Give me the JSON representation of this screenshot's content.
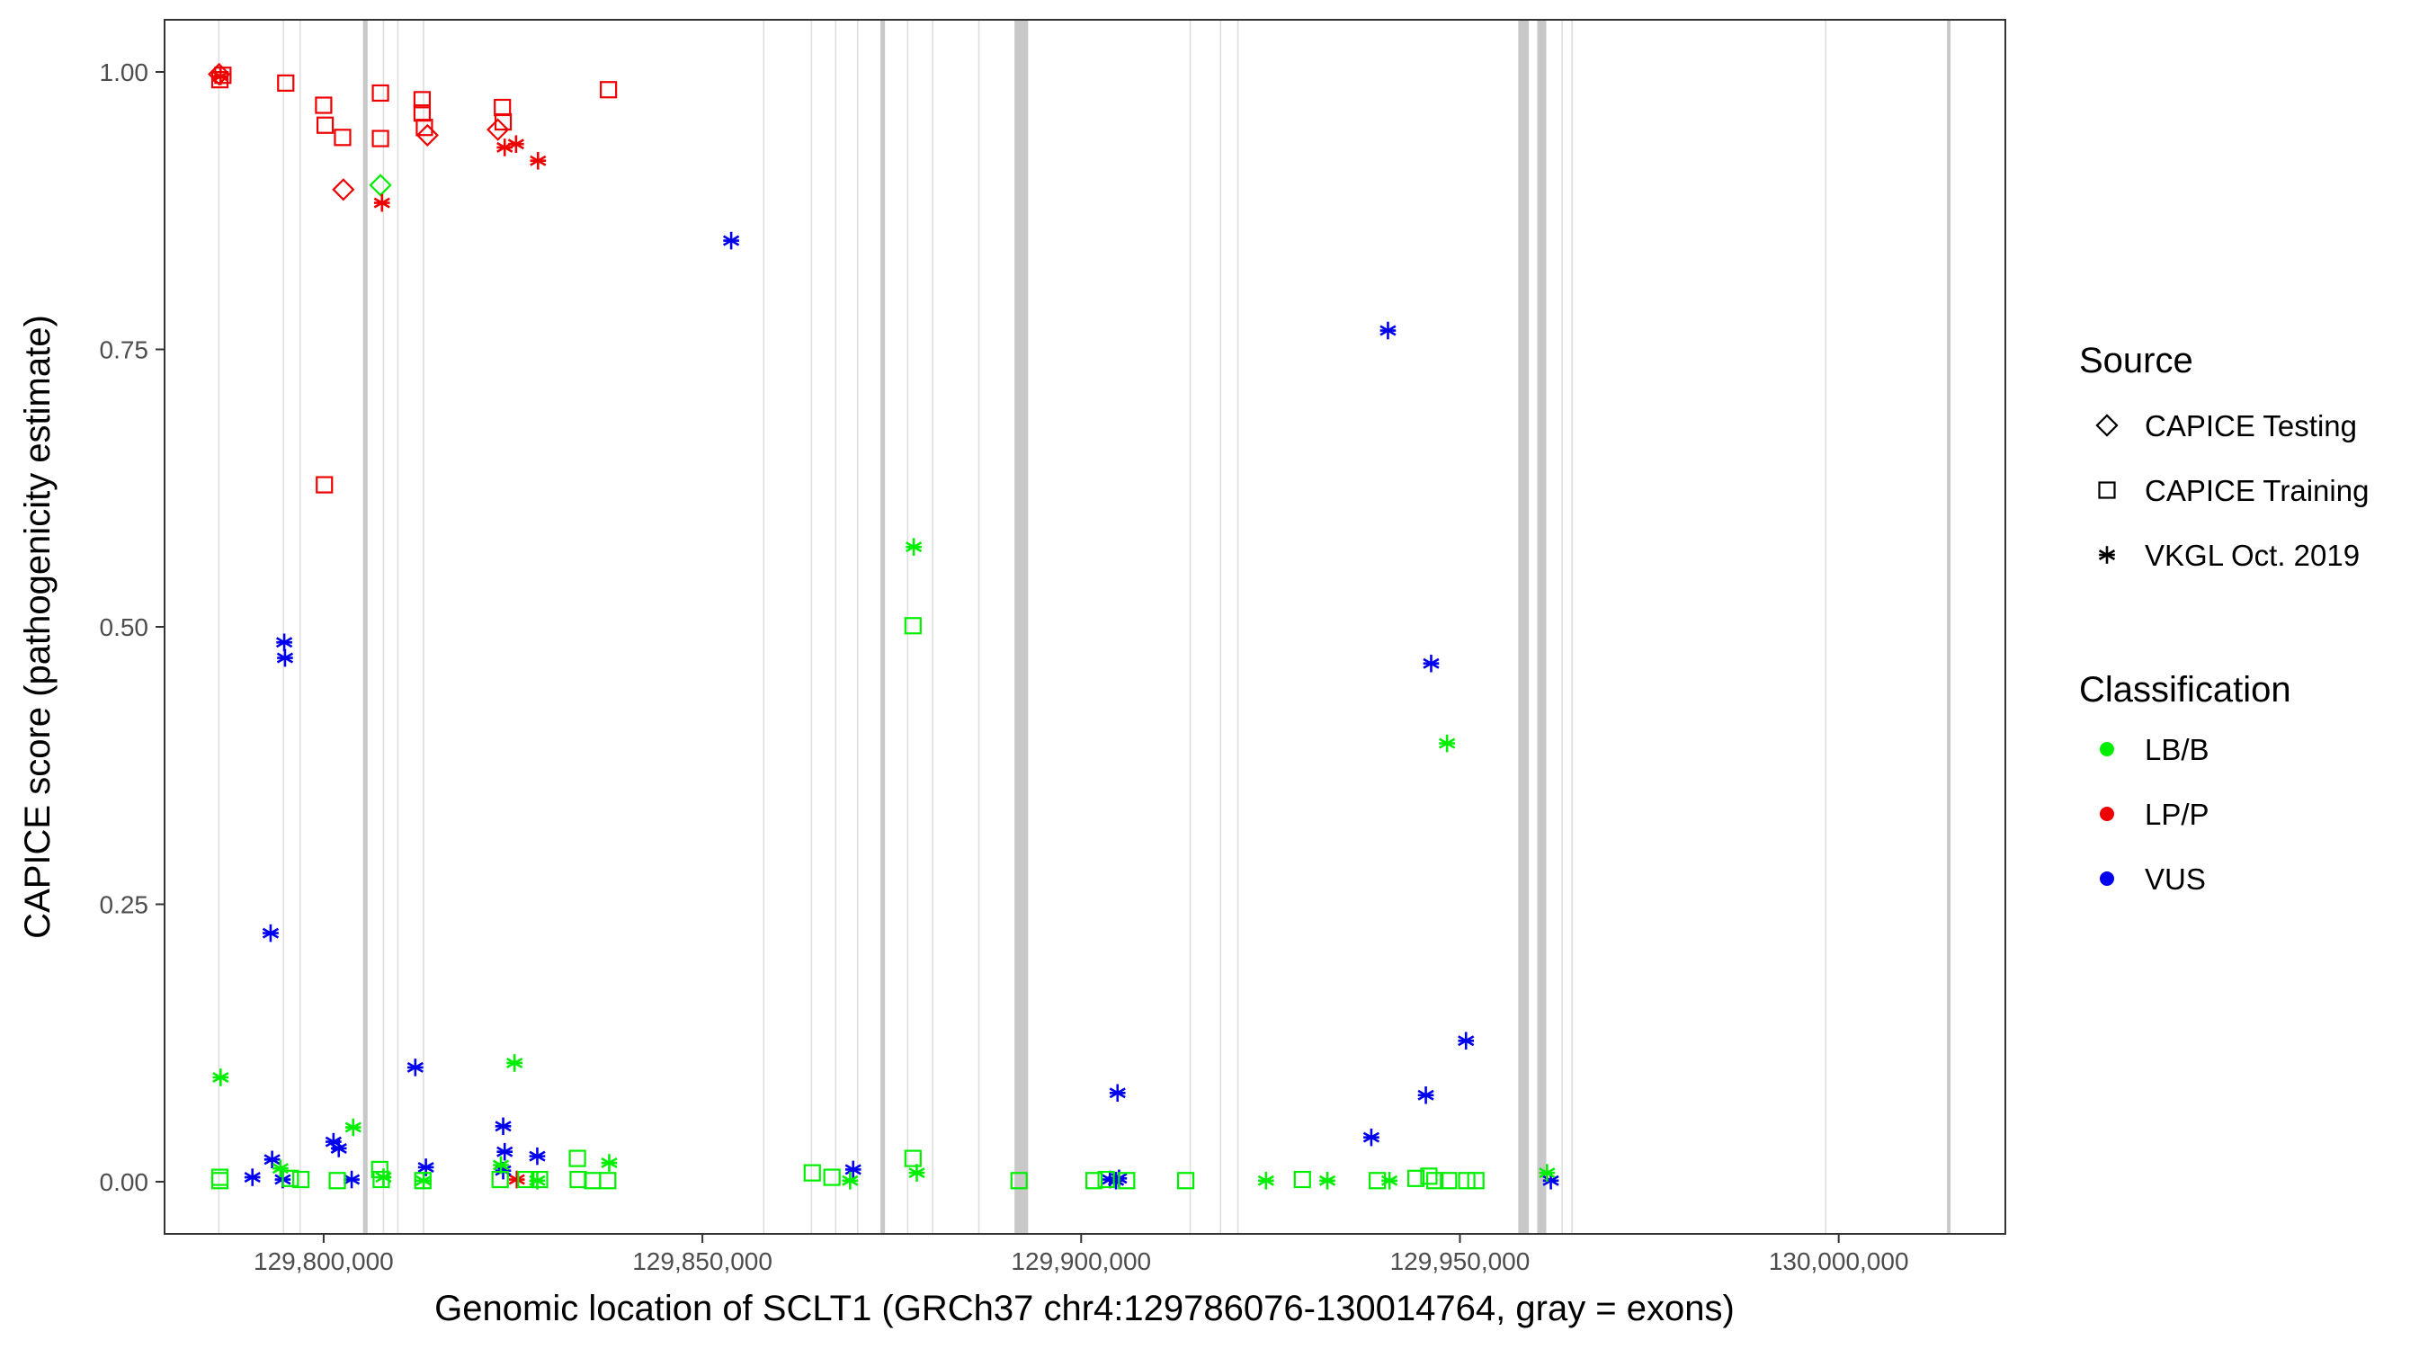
{
  "chart_data": {
    "type": "scatter",
    "title": "",
    "xlabel": "Genomic location of SCLT1 (GRCh37 chr4:129786076-130014764, gray = exons)",
    "ylabel": "CAPICE score (pathogenicity estimate)",
    "xlim": [
      129779000,
      130022000
    ],
    "ylim": [
      -0.047,
      1.047
    ],
    "x_ticks": [
      129800000,
      129850000,
      129900000,
      129950000,
      130000000
    ],
    "x_tick_labels": [
      "129,800,000",
      "129,850,000",
      "129,900,000",
      "129,950,000",
      "130,000,000"
    ],
    "y_ticks": [
      0,
      0.25,
      0.5,
      0.75,
      1
    ],
    "y_tick_labels": [
      "0.00",
      "0.25",
      "0.50",
      "0.75",
      "1.00"
    ],
    "grid": false,
    "exons": [
      [
        129786076,
        129786250
      ],
      [
        129794600,
        129794750
      ],
      [
        129796800,
        129796950
      ],
      [
        129805200,
        129805800
      ],
      [
        129807800,
        129807950
      ],
      [
        129809700,
        129809850
      ],
      [
        129813100,
        129813250
      ],
      [
        129858000,
        129858150
      ],
      [
        129864300,
        129864450
      ],
      [
        129867500,
        129867650
      ],
      [
        129870400,
        129870550
      ],
      [
        129873500,
        129874100
      ],
      [
        129877000,
        129877150
      ],
      [
        129880300,
        129880450
      ],
      [
        129886400,
        129886550
      ],
      [
        129891200,
        129893000
      ],
      [
        129914300,
        129914450
      ],
      [
        129918300,
        129918450
      ],
      [
        129920600,
        129920750
      ],
      [
        129957700,
        129959100
      ],
      [
        129960200,
        129961400
      ],
      [
        129963400,
        129963550
      ],
      [
        129964700,
        129964850
      ],
      [
        129998200,
        129998350
      ],
      [
        130014300,
        130014764
      ]
    ],
    "legends": {
      "source": {
        "title": "Source",
        "position": "right",
        "items": [
          {
            "label": "CAPICE Testing",
            "shape": "diamond"
          },
          {
            "label": "CAPICE Training",
            "shape": "square"
          },
          {
            "label": "VKGL Oct. 2019",
            "shape": "asterisk"
          }
        ]
      },
      "classification": {
        "title": "Classification",
        "position": "right",
        "items": [
          {
            "label": "LB/B",
            "color": "#00ee00"
          },
          {
            "label": "LP/P",
            "color": "#ee0000"
          },
          {
            "label": "VUS",
            "color": "#0000ee"
          }
        ]
      }
    },
    "shape_map": {
      "CAPICE Testing": "diamond",
      "CAPICE Training": "square",
      "VKGL Oct. 2019": "asterisk"
    },
    "color_map": {
      "LB/B": "#00ee00",
      "LP/P": "#ee0000",
      "VUS": "#0000ee"
    },
    "series": [
      {
        "source": "CAPICE Training",
        "classification": "LP/P",
        "points": [
          [
            129786300,
            0.993
          ],
          [
            129786700,
            0.997
          ],
          [
            129795000,
            0.99
          ],
          [
            129800000,
            0.97
          ],
          [
            129800200,
            0.952
          ],
          [
            129802500,
            0.941
          ],
          [
            129807500,
            0.981
          ],
          [
            129807500,
            0.94
          ],
          [
            129813000,
            0.975
          ],
          [
            129813000,
            0.963
          ],
          [
            129813300,
            0.95
          ],
          [
            129823600,
            0.968
          ],
          [
            129823700,
            0.955
          ],
          [
            129837600,
            0.984
          ],
          [
            129800100,
            0.628
          ]
        ]
      },
      {
        "source": "CAPICE Testing",
        "classification": "LP/P",
        "points": [
          [
            129786200,
            0.998
          ],
          [
            129802600,
            0.894
          ],
          [
            129813700,
            0.943
          ],
          [
            129823000,
            0.948
          ]
        ]
      },
      {
        "source": "CAPICE Testing",
        "classification": "LB/B",
        "points": [
          [
            129807500,
            0.898
          ]
        ]
      },
      {
        "source": "VKGL Oct. 2019",
        "classification": "LP/P",
        "points": [
          [
            129786400,
            0.996
          ],
          [
            129807700,
            0.882
          ],
          [
            129823900,
            0.932
          ],
          [
            129825400,
            0.935
          ],
          [
            129828300,
            0.92
          ],
          [
            129825500,
            0.002
          ]
        ]
      },
      {
        "source": "VKGL Oct. 2019",
        "classification": "VUS",
        "points": [
          [
            129853800,
            0.848
          ],
          [
            129940500,
            0.767
          ],
          [
            129946200,
            0.467
          ],
          [
            129794800,
            0.486
          ],
          [
            129794900,
            0.472
          ],
          [
            129793000,
            0.224
          ],
          [
            129950800,
            0.127
          ],
          [
            129812100,
            0.103
          ],
          [
            129904800,
            0.08
          ],
          [
            129945500,
            0.078
          ],
          [
            129823700,
            0.05
          ],
          [
            129938300,
            0.04
          ],
          [
            129801300,
            0.036
          ],
          [
            129802000,
            0.03
          ],
          [
            129823900,
            0.027
          ],
          [
            129828200,
            0.023
          ],
          [
            129793200,
            0.02
          ],
          [
            129813500,
            0.013
          ],
          [
            129869900,
            0.011
          ],
          [
            129823700,
            0.01
          ],
          [
            129790600,
            0.004
          ],
          [
            129794600,
            0.002
          ],
          [
            129803700,
            0.002
          ],
          [
            129903800,
            0.002
          ],
          [
            129904600,
            0.001
          ],
          [
            129962000,
            0.001
          ],
          [
            129905000,
            0.003
          ]
        ]
      },
      {
        "source": "VKGL Oct. 2019",
        "classification": "LB/B",
        "points": [
          [
            129877900,
            0.572
          ],
          [
            129948300,
            0.395
          ],
          [
            129825200,
            0.107
          ],
          [
            129786400,
            0.094
          ],
          [
            129803900,
            0.049
          ],
          [
            129837700,
            0.017
          ],
          [
            129794300,
            0.012
          ],
          [
            129823400,
            0.015
          ],
          [
            129878300,
            0.008
          ],
          [
            129807900,
            0.004
          ],
          [
            129813200,
            0.001
          ],
          [
            129869500,
            0.001
          ],
          [
            129924400,
            0.001
          ],
          [
            129932500,
            0.001
          ],
          [
            129940700,
            0.001
          ],
          [
            129961500,
            0.008
          ],
          [
            129828200,
            0.001
          ]
        ]
      },
      {
        "source": "CAPICE Training",
        "classification": "LB/B",
        "points": [
          [
            129877800,
            0.501
          ],
          [
            129786300,
            0.004
          ],
          [
            129786300,
            0.001
          ],
          [
            129795600,
            0.003
          ],
          [
            129797000,
            0.002
          ],
          [
            129801800,
            0.001
          ],
          [
            129807400,
            0.011
          ],
          [
            129807600,
            0.002
          ],
          [
            129813100,
            0.001
          ],
          [
            129823300,
            0.002
          ],
          [
            129826700,
            0.002
          ],
          [
            129828500,
            0.002
          ],
          [
            129833500,
            0.021
          ],
          [
            129833600,
            0.002
          ],
          [
            129835500,
            0.001
          ],
          [
            129837500,
            0.001
          ],
          [
            129864500,
            0.008
          ],
          [
            129867100,
            0.004
          ],
          [
            129877800,
            0.021
          ],
          [
            129891800,
            0.001
          ],
          [
            129901700,
            0.001
          ],
          [
            129903300,
            0.002
          ],
          [
            129906000,
            0.001
          ],
          [
            129913800,
            0.001
          ],
          [
            129929200,
            0.002
          ],
          [
            129939100,
            0.001
          ],
          [
            129944200,
            0.003
          ],
          [
            129945900,
            0.005
          ],
          [
            129946700,
            0.001
          ],
          [
            129948500,
            0.001
          ],
          [
            129950900,
            0.001
          ],
          [
            129952100,
            0.001
          ]
        ]
      }
    ]
  }
}
